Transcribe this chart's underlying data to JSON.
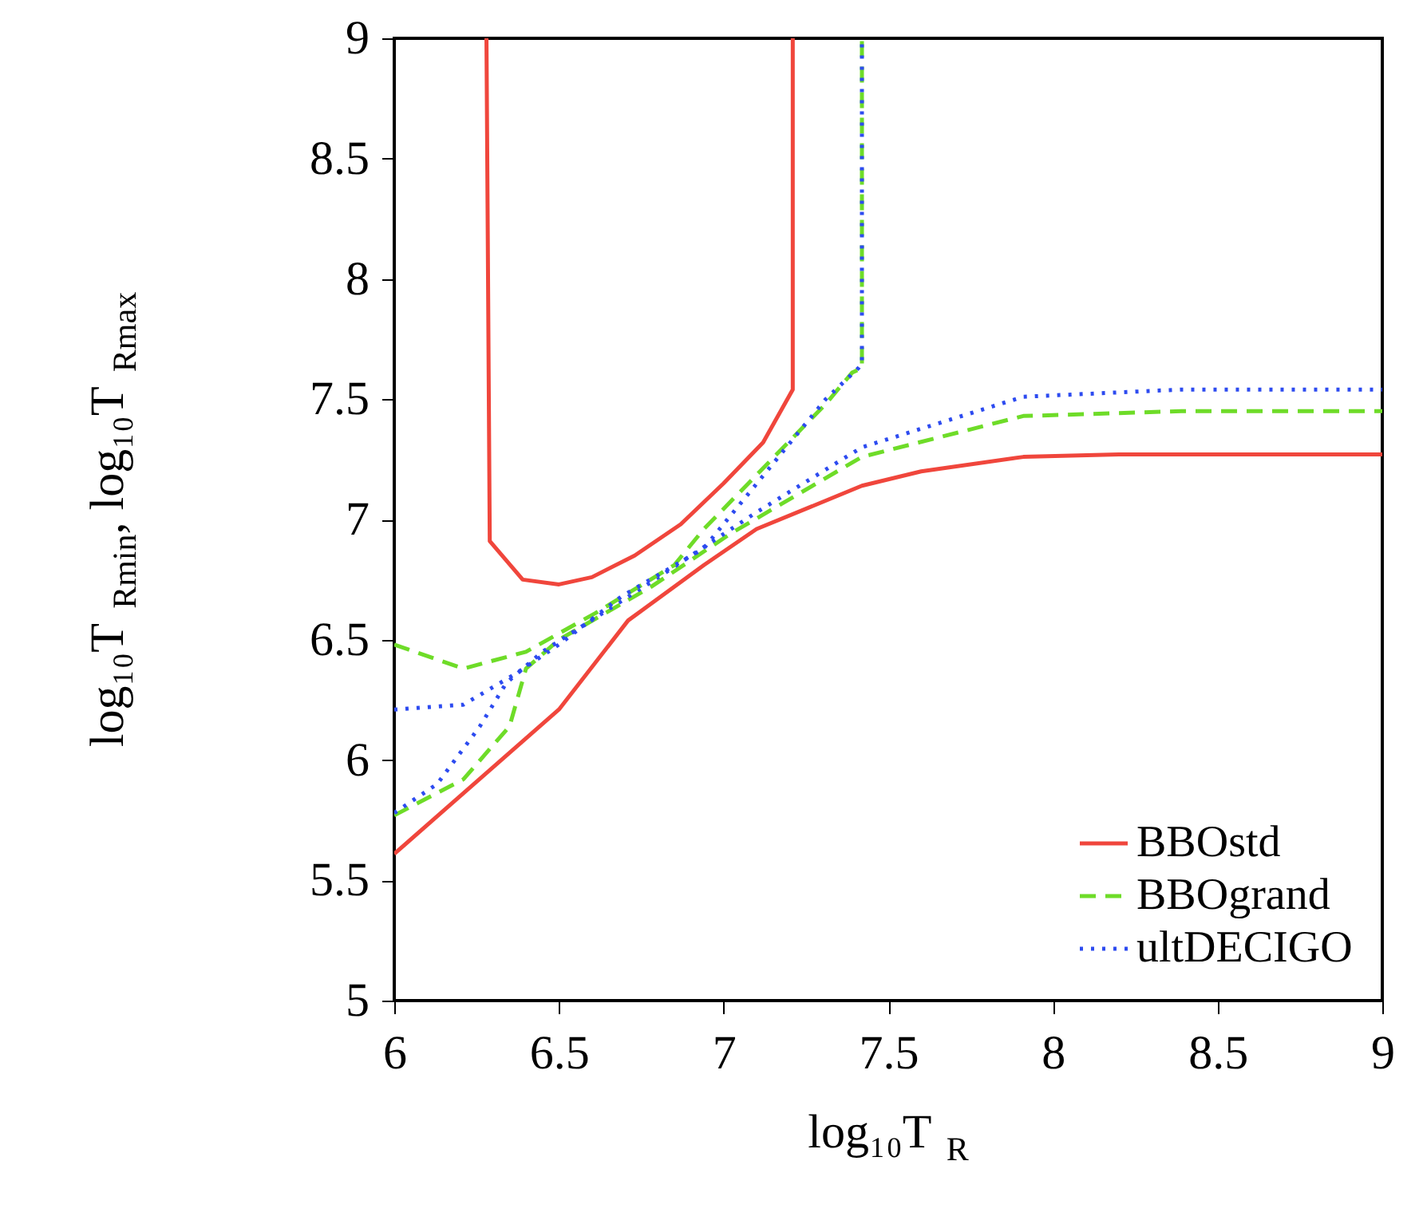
{
  "chart_data": {
    "type": "line",
    "xlabel": "log₁₀T$_{R}$",
    "ylabel": "log₁₀T$_{Rmin}$, log₁₀T$_{Rmax}$",
    "xlim": [
      6,
      9
    ],
    "ylim": [
      5,
      9
    ],
    "xticks": [
      6,
      6.5,
      7,
      7.5,
      8,
      8.5,
      9
    ],
    "yticks": [
      5,
      5.5,
      6,
      6.5,
      7,
      7.5,
      8,
      8.5,
      9
    ],
    "grid": false,
    "legend": "bottom right",
    "marker": "none",
    "series": [
      {
        "name": "BBOstd",
        "color": "#f0463c",
        "line_style": "solid",
        "x": [
          6,
          6.5,
          6.71,
          6.94,
          7.1,
          7.42,
          7.6,
          7.91,
          8.2,
          9
        ],
        "values": [
          5.61,
          6.21,
          6.58,
          6.81,
          6.96,
          7.14,
          7.2,
          7.26,
          7.27,
          7.27
        ]
      },
      {
        "name": "BBOgrand",
        "color": "#6edc28",
        "line_style": "dashed",
        "x": [
          6,
          6.21,
          6.35,
          6.4,
          6.5,
          6.78,
          7.02,
          7.42,
          7.91,
          8.39,
          9
        ],
        "values": [
          5.77,
          5.92,
          6.14,
          6.38,
          6.5,
          6.72,
          6.94,
          7.26,
          7.43,
          7.45,
          7.45
        ]
      },
      {
        "name": "ultDECIGO",
        "color": "#2d4bf0",
        "line_style": "dotted",
        "x": [
          6,
          6.13,
          6.26,
          6.34,
          6.45,
          6.78,
          7.1,
          7.42,
          7.91,
          8.39,
          9
        ],
        "values": [
          5.78,
          5.9,
          6.14,
          6.32,
          6.45,
          6.74,
          7.03,
          7.3,
          7.51,
          7.54,
          7.54
        ]
      },
      {
        "color": "#f0463c",
        "line_style": "solid",
        "x": [
          6.28,
          6.29,
          6.39,
          6.5,
          6.6,
          6.73,
          6.87,
          7.0,
          7.12,
          7.21,
          7.21
        ],
        "values": [
          9,
          6.91,
          6.75,
          6.73,
          6.76,
          6.85,
          6.98,
          7.15,
          7.32,
          7.54,
          9
        ]
      },
      {
        "color": "#6edc28",
        "line_style": "dashed",
        "x": [
          6,
          6.21,
          6.4,
          6.61,
          6.85,
          6.94,
          7.31,
          7.39,
          7.42,
          7.42
        ],
        "values": [
          6.48,
          6.38,
          6.45,
          6.61,
          6.81,
          6.96,
          7.48,
          7.61,
          7.63,
          9
        ]
      },
      {
        "color": "#2d4bf0",
        "line_style": "dotted",
        "x": [
          6,
          6.21,
          6.37,
          6.5,
          6.69,
          6.94,
          7.31,
          7.41,
          7.42,
          7.42
        ],
        "values": [
          6.21,
          6.23,
          6.36,
          6.48,
          6.68,
          6.88,
          7.5,
          7.63,
          7.65,
          9
        ]
      }
    ]
  }
}
